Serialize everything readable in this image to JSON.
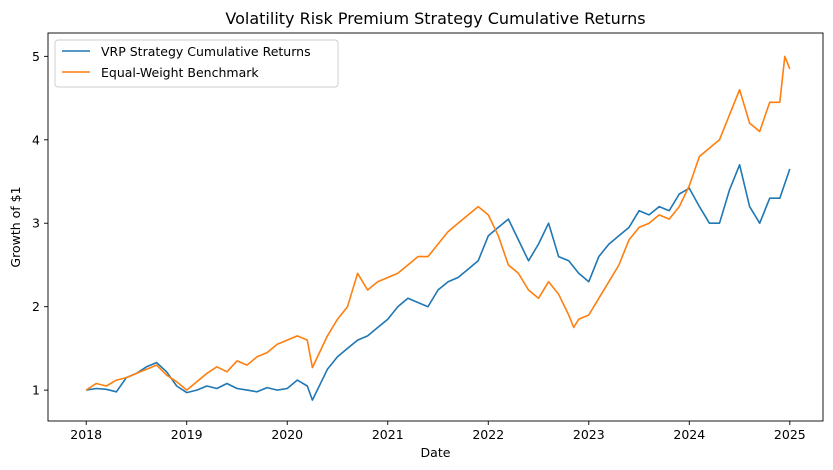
{
  "chart_data": {
    "type": "line",
    "title": "Volatility Risk Premium Strategy Cumulative Returns",
    "xlabel": "Date",
    "ylabel": "Growth of $1",
    "xlim": [
      2017.62,
      2025.33
    ],
    "ylim": [
      0.63,
      5.28
    ],
    "xticks": [
      2018,
      2019,
      2020,
      2021,
      2022,
      2023,
      2024,
      2025
    ],
    "xtick_labels": [
      "2018",
      "2019",
      "2020",
      "2021",
      "2022",
      "2023",
      "2024",
      "2025"
    ],
    "yticks": [
      1,
      2,
      3,
      4,
      5
    ],
    "ytick_labels": [
      "1",
      "2",
      "3",
      "4",
      "5"
    ],
    "grid": false,
    "legend_position": "top-left",
    "series": [
      {
        "name": "VRP Strategy Cumulative Returns",
        "color": "#1f77b4",
        "x": [
          2018.0,
          2018.1,
          2018.2,
          2018.3,
          2018.4,
          2018.5,
          2018.6,
          2018.7,
          2018.8,
          2018.9,
          2019.0,
          2019.1,
          2019.2,
          2019.3,
          2019.4,
          2019.5,
          2019.6,
          2019.7,
          2019.8,
          2019.9,
          2020.0,
          2020.1,
          2020.2,
          2020.25,
          2020.4,
          2020.5,
          2020.6,
          2020.7,
          2020.8,
          2020.9,
          2021.0,
          2021.1,
          2021.2,
          2021.3,
          2021.4,
          2021.5,
          2021.6,
          2021.7,
          2021.8,
          2021.9,
          2022.0,
          2022.1,
          2022.2,
          2022.3,
          2022.4,
          2022.5,
          2022.6,
          2022.7,
          2022.8,
          2022.9,
          2023.0,
          2023.1,
          2023.2,
          2023.3,
          2023.4,
          2023.5,
          2023.6,
          2023.7,
          2023.8,
          2023.9,
          2024.0,
          2024.1,
          2024.2,
          2024.3,
          2024.4,
          2024.5,
          2024.6,
          2024.7,
          2024.8,
          2024.9,
          2025.0
        ],
        "values": [
          1.0,
          1.02,
          1.01,
          0.98,
          1.15,
          1.2,
          1.28,
          1.33,
          1.22,
          1.05,
          0.97,
          1.0,
          1.05,
          1.02,
          1.08,
          1.02,
          1.0,
          0.98,
          1.03,
          1.0,
          1.02,
          1.12,
          1.05,
          0.88,
          1.25,
          1.4,
          1.5,
          1.6,
          1.65,
          1.75,
          1.85,
          2.0,
          2.1,
          2.05,
          2.0,
          2.2,
          2.3,
          2.35,
          2.45,
          2.55,
          2.85,
          2.95,
          3.05,
          2.8,
          2.55,
          2.75,
          3.0,
          2.6,
          2.55,
          2.4,
          2.3,
          2.6,
          2.75,
          2.85,
          2.95,
          3.15,
          3.1,
          3.2,
          3.15,
          3.35,
          3.42,
          3.2,
          3.0,
          3.0,
          3.4,
          3.7,
          3.2,
          3.0,
          3.3,
          3.3,
          3.65
        ]
      },
      {
        "name": "Equal-Weight Benchmark",
        "color": "#ff7f0e",
        "x": [
          2018.0,
          2018.1,
          2018.2,
          2018.3,
          2018.4,
          2018.5,
          2018.6,
          2018.7,
          2018.8,
          2018.9,
          2019.0,
          2019.1,
          2019.2,
          2019.3,
          2019.4,
          2019.5,
          2019.6,
          2019.7,
          2019.8,
          2019.9,
          2020.0,
          2020.1,
          2020.2,
          2020.25,
          2020.4,
          2020.5,
          2020.6,
          2020.7,
          2020.8,
          2020.9,
          2021.0,
          2021.1,
          2021.2,
          2021.3,
          2021.4,
          2021.5,
          2021.6,
          2021.7,
          2021.8,
          2021.9,
          2022.0,
          2022.1,
          2022.2,
          2022.3,
          2022.4,
          2022.5,
          2022.6,
          2022.7,
          2022.8,
          2022.85,
          2022.9,
          2023.0,
          2023.1,
          2023.2,
          2023.3,
          2023.4,
          2023.5,
          2023.6,
          2023.7,
          2023.8,
          2023.9,
          2024.0,
          2024.1,
          2024.2,
          2024.3,
          2024.4,
          2024.5,
          2024.6,
          2024.7,
          2024.8,
          2024.9,
          2024.95,
          2025.0
        ],
        "values": [
          1.0,
          1.08,
          1.05,
          1.12,
          1.15,
          1.2,
          1.25,
          1.3,
          1.18,
          1.1,
          1.0,
          1.1,
          1.2,
          1.28,
          1.22,
          1.35,
          1.3,
          1.4,
          1.45,
          1.55,
          1.6,
          1.65,
          1.6,
          1.27,
          1.65,
          1.85,
          2.0,
          2.4,
          2.2,
          2.3,
          2.35,
          2.4,
          2.5,
          2.6,
          2.6,
          2.75,
          2.9,
          3.0,
          3.1,
          3.2,
          3.1,
          2.85,
          2.5,
          2.4,
          2.2,
          2.1,
          2.3,
          2.15,
          1.9,
          1.75,
          1.85,
          1.9,
          2.1,
          2.3,
          2.5,
          2.8,
          2.95,
          3.0,
          3.1,
          3.05,
          3.2,
          3.45,
          3.8,
          3.9,
          4.0,
          4.3,
          4.6,
          4.2,
          4.1,
          4.45,
          4.45,
          5.0,
          4.85
        ]
      }
    ]
  }
}
